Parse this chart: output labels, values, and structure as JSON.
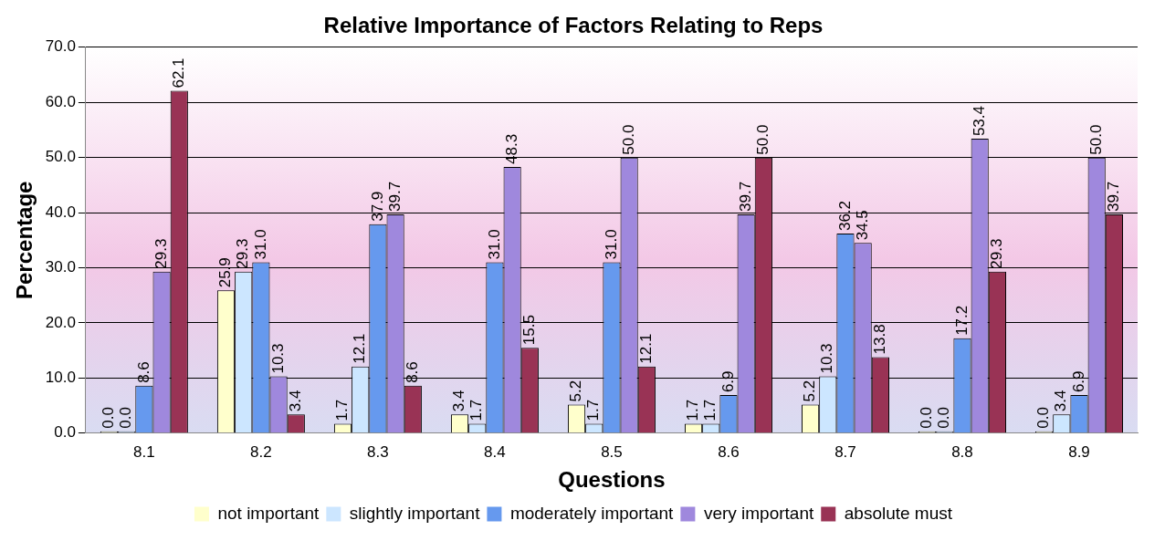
{
  "chart_data": {
    "type": "bar",
    "title": "Relative Importance of Factors Relating to Reps",
    "xlabel": "Questions",
    "ylabel": "Percentage",
    "categories": [
      "8.1",
      "8.2",
      "8.3",
      "8.4",
      "8.5",
      "8.6",
      "8.7",
      "8.8",
      "8.9"
    ],
    "series": [
      {
        "name": "not important",
        "color": "#ffffcc",
        "values": [
          0.0,
          25.9,
          1.7,
          3.4,
          5.2,
          1.7,
          5.2,
          0.0,
          0.0
        ],
        "value_labels": [
          "0.0",
          "25.9",
          "1.7",
          "3.4",
          "5.2",
          "1.7",
          "5.2",
          "0.0",
          "0.0"
        ]
      },
      {
        "name": "slightly important",
        "color": "#cce6ff",
        "values": [
          0.0,
          29.3,
          12.1,
          1.7,
          1.7,
          1.7,
          10.3,
          0.0,
          3.4
        ],
        "value_labels": [
          "0.0",
          "29.3",
          "12.1",
          "1.7",
          "1.7",
          "1.7",
          "10.3",
          "0.0",
          "3.4"
        ]
      },
      {
        "name": "moderately important",
        "color": "#6699ee",
        "values": [
          8.6,
          31.0,
          37.9,
          31.0,
          31.0,
          6.9,
          36.2,
          17.2,
          6.9
        ],
        "value_labels": [
          "8.6",
          "31.0",
          "37.9",
          "31.0",
          "31.0",
          "6.9",
          "36.2",
          "17.2",
          "6.9"
        ]
      },
      {
        "name": "very important",
        "color": "#9f88dd",
        "values": [
          29.3,
          10.3,
          39.7,
          48.3,
          50.0,
          39.7,
          34.5,
          53.4,
          50.0
        ],
        "value_labels": [
          "29.3",
          "10.3",
          "39.7",
          "48.3",
          "50.0",
          "39.7",
          "34.5",
          "53.4",
          "50.0"
        ]
      },
      {
        "name": "absolute must",
        "color": "#993355",
        "values": [
          62.1,
          3.4,
          8.6,
          15.5,
          12.1,
          50.0,
          13.8,
          29.3,
          39.7
        ],
        "value_labels": [
          "62.1",
          "3.4",
          "8.6",
          "15.5",
          "12.1",
          "50.0",
          "13.8",
          "29.3",
          "39.7"
        ]
      }
    ],
    "ylim": [
      0,
      70
    ],
    "yticks": [
      {
        "value": 0,
        "label": "0.0"
      },
      {
        "value": 10,
        "label": "10.0"
      },
      {
        "value": 20,
        "label": "20.0"
      },
      {
        "value": 30,
        "label": "30.0"
      },
      {
        "value": 40,
        "label": "40.0"
      },
      {
        "value": 50,
        "label": "50.0"
      },
      {
        "value": 60,
        "label": "60.0"
      },
      {
        "value": 70,
        "label": "70.0"
      }
    ],
    "grid": "y",
    "legend": "bottom"
  }
}
